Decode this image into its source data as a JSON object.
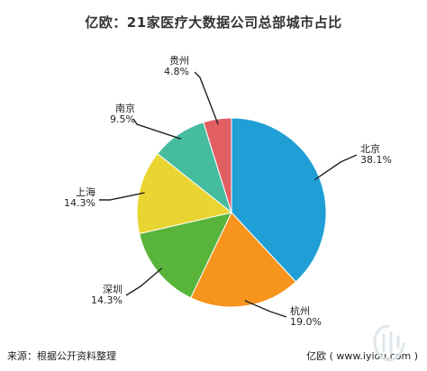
{
  "chart_data": {
    "type": "pie",
    "title": "亿欧：21家医疗大数据公司总部城市占比",
    "categories": [
      "北京",
      "杭州",
      "深圳",
      "上海",
      "南京",
      "贵州"
    ],
    "values": [
      38.1,
      19.0,
      14.3,
      14.3,
      9.5,
      4.8
    ],
    "value_labels": [
      "38.1%",
      "19.0%",
      "14.3%",
      "14.3%",
      "9.5%",
      "4.8%"
    ],
    "colors": [
      "#1f9fd6",
      "#f7941d",
      "#58b43b",
      "#e9d531",
      "#46bc9f",
      "#e15f63"
    ],
    "start": "12 o'clock",
    "direction": "clockwise",
    "legend": "none"
  },
  "footer": {
    "source": "来源：根据公开资料整理",
    "brand": "亿欧 ( www.iyiou.com )"
  }
}
